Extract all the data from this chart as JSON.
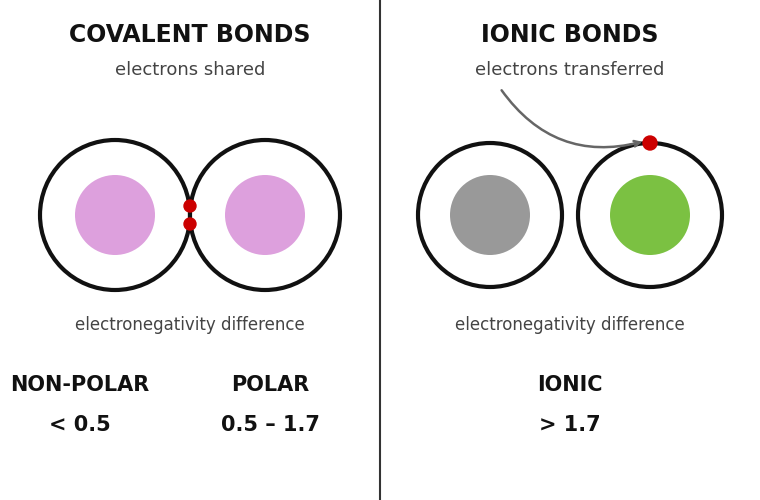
{
  "bg_color": "#ffffff",
  "cov_title": "COVALENT BONDS",
  "cov_subtitle": "electrons shared",
  "cov_label": "electronegativity difference",
  "cov_nonpolar_label": "NON-POLAR",
  "cov_nonpolar_value": "< 0.5",
  "cov_polar_label": "POLAR",
  "cov_polar_value": "0.5 – 1.7",
  "ion_title": "IONIC BONDS",
  "ion_subtitle": "electrons transferred",
  "ion_label": "electronegativity difference",
  "ion_ionic_label": "IONIC",
  "ion_ionic_value": "> 1.7",
  "cov_inner_color": "#dda0dd",
  "cov_electron_color": "#cc0000",
  "ion_left_inner_color": "#999999",
  "ion_right_inner_color": "#7bc142",
  "ion_electron_color": "#cc0000",
  "title_fontsize": 17,
  "subtitle_fontsize": 13,
  "label_fontsize": 12,
  "bold_label_fontsize": 15,
  "value_fontsize": 15
}
